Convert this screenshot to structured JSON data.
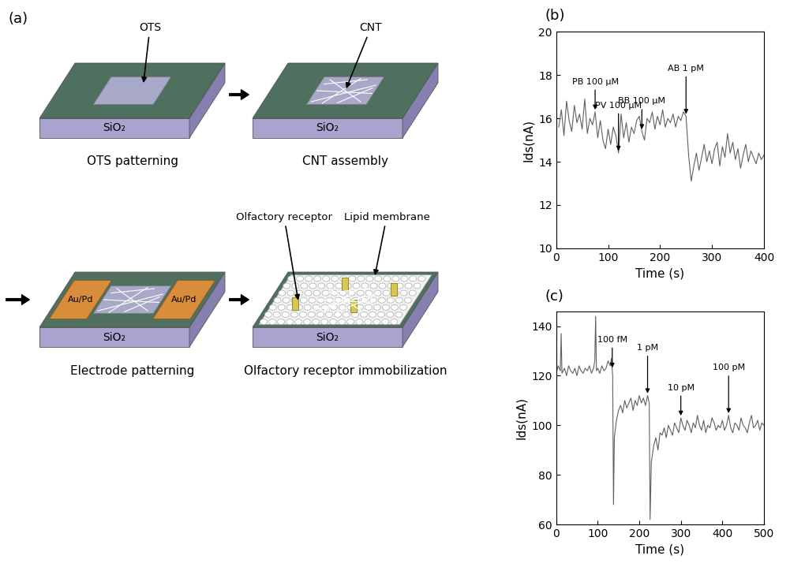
{
  "diagram": {
    "panel_label": "(a)",
    "steps": [
      {
        "caption": "OTS patterning",
        "substrate": "SiO₂",
        "callouts": [
          "OTS"
        ]
      },
      {
        "caption": "CNT assembly",
        "substrate": "SiO₂",
        "callouts": [
          "CNT"
        ]
      },
      {
        "caption": "Electrode patterning",
        "substrate": "SiO₂",
        "electrodes": [
          "Au/Pd",
          "Au/Pd"
        ]
      },
      {
        "caption": "Olfactory receptor immobilization",
        "substrate": "SiO₂",
        "callouts": [
          "Olfactory receptor",
          "Lipid membrane"
        ]
      }
    ]
  },
  "chart_data": [
    {
      "type": "line",
      "panel_label": "(b)",
      "x_label": "Time (s)",
      "y_label": "Ids(nA)",
      "color": "#606060",
      "xlim": [
        0,
        400
      ],
      "ylim": [
        10,
        20
      ],
      "xticks": [
        0,
        100,
        200,
        300,
        400
      ],
      "yticks": [
        10,
        12,
        14,
        16,
        18,
        20
      ],
      "x": [
        5,
        10,
        15,
        20,
        25,
        30,
        35,
        40,
        45,
        50,
        55,
        60,
        65,
        70,
        75,
        80,
        85,
        90,
        95,
        100,
        105,
        110,
        115,
        120,
        125,
        130,
        135,
        140,
        145,
        150,
        155,
        160,
        165,
        170,
        175,
        180,
        185,
        190,
        195,
        200,
        205,
        210,
        215,
        220,
        225,
        230,
        235,
        240,
        245,
        250,
        255,
        260,
        265,
        270,
        275,
        280,
        285,
        290,
        295,
        300,
        305,
        310,
        315,
        320,
        325,
        330,
        335,
        340,
        345,
        350,
        355,
        360,
        365,
        370,
        375,
        380,
        385,
        390,
        395,
        400
      ],
      "values": [
        15.6,
        16.4,
        15.2,
        16.8,
        15.9,
        15.4,
        16.6,
        15.8,
        16.2,
        15.5,
        16.9,
        15.3,
        16.0,
        15.7,
        16.3,
        15.1,
        15.9,
        15.0,
        14.6,
        15.5,
        14.8,
        15.6,
        15.2,
        14.4,
        16.2,
        15.1,
        15.8,
        14.9,
        15.6,
        15.3,
        15.9,
        16.1,
        15.4,
        15.0,
        16.0,
        15.8,
        16.3,
        15.5,
        16.1,
        15.7,
        16.4,
        15.6,
        16.0,
        15.8,
        16.2,
        15.6,
        16.1,
        15.9,
        16.3,
        16.1,
        14.3,
        13.1,
        13.8,
        14.4,
        13.6,
        14.2,
        14.8,
        14.0,
        14.5,
        13.9,
        14.6,
        14.9,
        13.8,
        14.7,
        14.2,
        15.3,
        14.4,
        14.9,
        14.1,
        14.6,
        13.7,
        14.3,
        14.8,
        14.0,
        14.5,
        14.2,
        13.9,
        14.4,
        14.1,
        14.3
      ],
      "annotations": [
        {
          "text": "PB 100 μM",
          "x": 75
        },
        {
          "text": "PV 100 μM",
          "x": 120
        },
        {
          "text": "BB 100 μM",
          "x": 165
        },
        {
          "text": "AB 1 pM",
          "x": 250
        }
      ]
    },
    {
      "type": "line",
      "panel_label": "(c)",
      "x_label": "Time (s)",
      "y_label": "Ids(nA)",
      "color": "#606060",
      "xlim": [
        0,
        500
      ],
      "ylim": [
        60,
        146
      ],
      "xticks": [
        0,
        100,
        200,
        300,
        400,
        500
      ],
      "yticks": [
        60,
        80,
        100,
        120,
        140
      ],
      "x": [
        0,
        5,
        10,
        12,
        14,
        20,
        25,
        30,
        35,
        40,
        45,
        50,
        55,
        60,
        65,
        70,
        75,
        80,
        85,
        90,
        93,
        95,
        97,
        100,
        105,
        110,
        115,
        120,
        125,
        130,
        133,
        136,
        138,
        140,
        145,
        150,
        155,
        160,
        165,
        170,
        175,
        180,
        185,
        190,
        195,
        200,
        205,
        210,
        215,
        220,
        224,
        226,
        229,
        235,
        240,
        245,
        250,
        255,
        260,
        265,
        270,
        275,
        280,
        285,
        290,
        295,
        300,
        305,
        310,
        315,
        320,
        325,
        330,
        335,
        340,
        345,
        350,
        355,
        360,
        365,
        370,
        375,
        380,
        385,
        390,
        395,
        400,
        405,
        410,
        415,
        420,
        425,
        430,
        435,
        440,
        445,
        450,
        455,
        460,
        465,
        470,
        475,
        480,
        485,
        490,
        495,
        500
      ],
      "values": [
        121,
        124,
        122,
        137,
        121,
        123,
        120,
        124,
        122,
        121,
        123,
        120,
        124,
        122,
        121,
        123,
        122,
        124,
        121,
        123,
        126,
        144,
        122,
        123,
        121,
        124,
        122,
        123,
        126,
        124,
        127,
        120,
        68,
        95,
        102,
        106,
        108,
        105,
        110,
        107,
        109,
        111,
        106,
        110,
        108,
        112,
        109,
        111,
        108,
        112,
        109,
        62,
        85,
        92,
        95,
        90,
        97,
        96,
        99,
        95,
        100,
        98,
        96,
        101,
        99,
        97,
        103,
        100,
        98,
        102,
        100,
        97,
        101,
        99,
        104,
        100,
        98,
        102,
        97,
        100,
        99,
        103,
        101,
        98,
        100,
        99,
        102,
        98,
        100,
        104,
        99,
        97,
        101,
        100,
        98,
        103,
        100,
        99,
        97,
        101,
        104,
        99,
        100,
        102,
        98,
        101,
        100
      ],
      "annotations": [
        {
          "text": "100 fM",
          "x": 135
        },
        {
          "text": "1 pM",
          "x": 220
        },
        {
          "text": "10 pM",
          "x": 300
        },
        {
          "text": "100 pM",
          "x": 415
        }
      ]
    }
  ]
}
